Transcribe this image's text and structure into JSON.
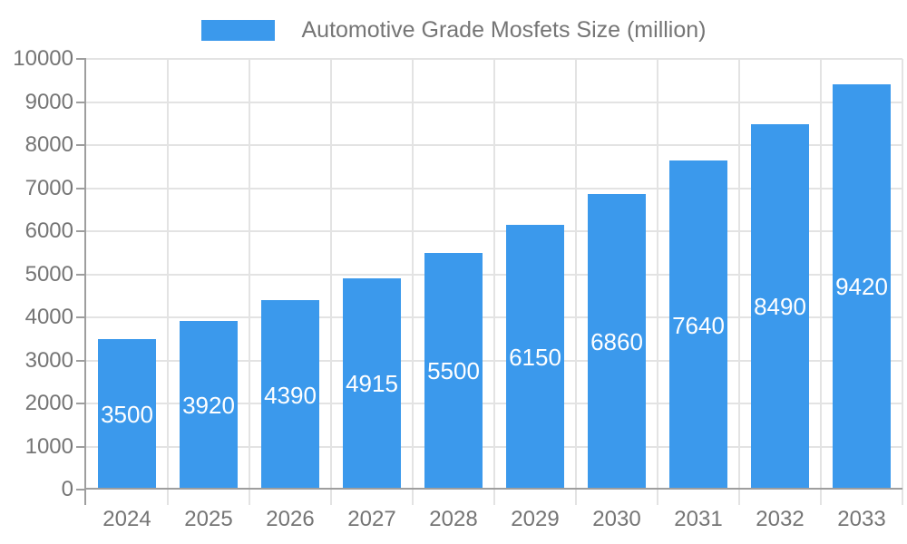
{
  "chart_data": {
    "type": "bar",
    "title": "",
    "legend": "Automotive Grade Mosfets Size (million)",
    "legend_position": "top",
    "categories": [
      "2024",
      "2025",
      "2026",
      "2027",
      "2028",
      "2029",
      "2030",
      "2031",
      "2032",
      "2033"
    ],
    "values": [
      3500,
      3920,
      4390,
      4915,
      5500,
      6150,
      6860,
      7640,
      8490,
      9420
    ],
    "xlabel": "",
    "ylabel": "",
    "ylim": [
      0,
      10000
    ],
    "y_ticks": [
      0,
      1000,
      2000,
      3000,
      4000,
      5000,
      6000,
      7000,
      8000,
      9000,
      10000
    ],
    "grid": true,
    "value_labels_shown": true,
    "colors": {
      "bar": "#3B99EC",
      "value_text": "#FFFFFF",
      "axis_text": "#757575",
      "grid_line": "#E3E3E3",
      "axis_line": "#9E9E9E",
      "background": "#FFFFFF"
    }
  }
}
